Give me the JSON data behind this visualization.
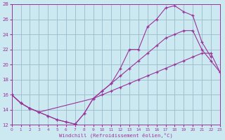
{
  "xlabel": "Windchill (Refroidissement éolien,°C)",
  "background_color": "#cce8f0",
  "grid_color": "#99bbcc",
  "line_color": "#993399",
  "xlim": [
    0,
    23
  ],
  "ylim": [
    12,
    28
  ],
  "yticks": [
    12,
    14,
    16,
    18,
    20,
    22,
    24,
    26,
    28
  ],
  "xticks": [
    0,
    1,
    2,
    3,
    4,
    5,
    6,
    7,
    8,
    9,
    10,
    11,
    12,
    13,
    14,
    15,
    16,
    17,
    18,
    19,
    20,
    21,
    22,
    23
  ],
  "line1_x": [
    0,
    1,
    2,
    3,
    4,
    5,
    6,
    7,
    8,
    9,
    10,
    11,
    12,
    13,
    14,
    15,
    16,
    17,
    18,
    19,
    20,
    21,
    22
  ],
  "line1_y": [
    16.0,
    14.9,
    14.2,
    13.7,
    13.2,
    12.7,
    12.4,
    12.1,
    13.5,
    15.5,
    16.5,
    17.5,
    19.5,
    22.0,
    22.0,
    25.0,
    26.0,
    27.5,
    27.8,
    27.0,
    26.5,
    23.0,
    21.0
  ],
  "line2_x": [
    0,
    1,
    2,
    3,
    4,
    5,
    6,
    7,
    8,
    9,
    10,
    11,
    12,
    13,
    14,
    15,
    16,
    17,
    18,
    19,
    20,
    21,
    22,
    23
  ],
  "line2_y": [
    16.0,
    14.9,
    14.2,
    13.7,
    13.2,
    12.7,
    12.4,
    12.1,
    13.5,
    15.5,
    16.5,
    17.5,
    18.5,
    19.5,
    20.5,
    21.5,
    22.5,
    23.5,
    24.0,
    24.5,
    24.5,
    22.0,
    20.5,
    19.0
  ],
  "line3_x": [
    0,
    1,
    2,
    3,
    9,
    10,
    11,
    12,
    13,
    14,
    15,
    16,
    17,
    18,
    19,
    20,
    21,
    22,
    23
  ],
  "line3_y": [
    16.0,
    14.9,
    14.2,
    13.7,
    15.5,
    16.0,
    16.5,
    17.0,
    17.5,
    18.0,
    18.5,
    19.0,
    19.5,
    20.0,
    20.5,
    21.0,
    21.5,
    21.5,
    19.0
  ]
}
